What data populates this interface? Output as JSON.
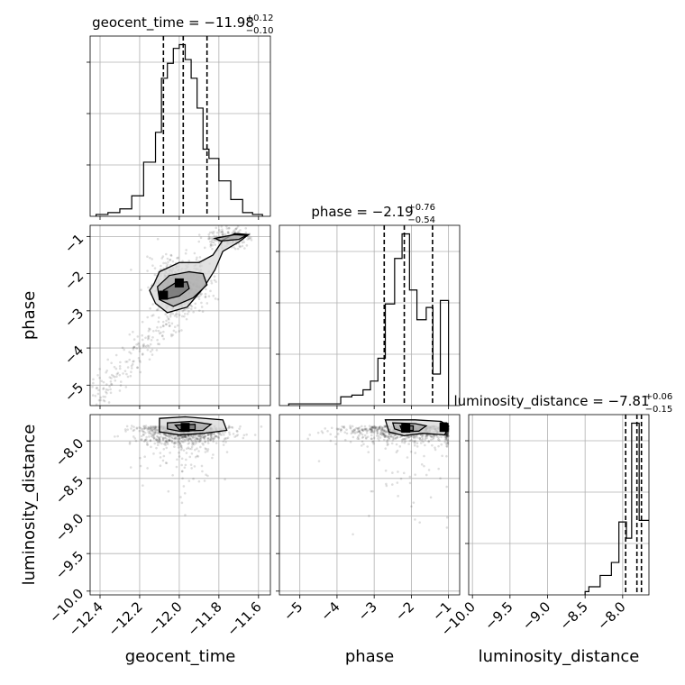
{
  "chart_data": {
    "type": "corner",
    "parameters": [
      "geocent_time",
      "phase",
      "luminosity_distance"
    ],
    "titles": [
      {
        "param": "geocent_time",
        "main": "geocent_time = −11.98",
        "sup": "+0.12",
        "sub": "−0.10"
      },
      {
        "param": "phase",
        "main": "phase = −2.19",
        "sup": "+0.76",
        "sub": "−0.54"
      },
      {
        "param": "luminosity_distance",
        "main": "luminosity_distance = −7.81",
        "sup": "+0.06",
        "sub": "−0.15"
      }
    ],
    "ranges": {
      "geocent_time": [
        -12.45,
        -11.54
      ],
      "phase": [
        -5.55,
        -0.7
      ],
      "luminosity_distance": [
        -10.05,
        -7.65
      ]
    },
    "tick_labels": {
      "geocent_time": [
        "−12.4",
        "−12.2",
        "−12.0",
        "−11.8",
        "−11.6"
      ],
      "phase": [
        "−5",
        "−4",
        "−3",
        "−2",
        "−1"
      ],
      "luminosity_distance": [
        "−10.0",
        "−9.5",
        "−9.0",
        "−8.5",
        "−8.0"
      ]
    },
    "tick_values": {
      "geocent_time": [
        -12.4,
        -12.2,
        -12.0,
        -11.8,
        -11.6
      ],
      "phase": [
        -5,
        -4,
        -3,
        -2,
        -1
      ],
      "luminosity_distance": [
        -10.0,
        -9.5,
        -9.0,
        -8.5,
        -8.0
      ]
    },
    "quantiles": {
      "geocent_time": [
        -12.08,
        -11.98,
        -11.86
      ],
      "phase": [
        -2.73,
        -2.19,
        -1.43
      ],
      "luminosity_distance": [
        -7.96,
        -7.81,
        -7.75
      ]
    },
    "histograms": {
      "geocent_time": {
        "edges": [
          -12.42,
          -12.36,
          -12.3,
          -12.24,
          -12.18,
          -12.12,
          -12.09,
          -12.06,
          -12.03,
          -12.0,
          -11.97,
          -11.94,
          -11.91,
          -11.88,
          -11.85,
          -11.8,
          -11.74,
          -11.68,
          -11.63,
          -11.58
        ],
        "counts": [
          0.01,
          0.02,
          0.04,
          0.11,
          0.29,
          0.45,
          0.74,
          0.82,
          0.9,
          0.92,
          0.84,
          0.74,
          0.58,
          0.36,
          0.31,
          0.19,
          0.09,
          0.02,
          0.01
        ]
      },
      "phase": {
        "edges": [
          -5.3,
          -3.9,
          -3.6,
          -3.3,
          -3.1,
          -2.9,
          -2.7,
          -2.45,
          -2.25,
          -2.05,
          -1.85,
          -1.6,
          -1.42,
          -1.22,
          -1.0
        ],
        "counts": [
          0.01,
          0.05,
          0.06,
          0.09,
          0.14,
          0.27,
          0.58,
          0.84,
          0.98,
          0.66,
          0.49,
          0.56,
          0.18,
          0.6
        ]
      },
      "luminosity_distance": {
        "edges": [
          -8.5,
          -8.45,
          -8.3,
          -8.15,
          -8.05,
          -7.95,
          -7.88,
          -7.78,
          -7.74,
          -7.6
        ],
        "counts": [
          0.02,
          0.05,
          0.12,
          0.2,
          0.45,
          0.35,
          1.06,
          0.46,
          0.46
        ]
      }
    },
    "density_2d": [
      {
        "x": "geocent_time",
        "y": "phase",
        "cores": [
          [
            -12.08,
            -2.58
          ],
          [
            -12.0,
            -2.25
          ]
        ],
        "contours": [
          [
            [
              -12.13,
              -2.3
            ],
            [
              -12.1,
              -1.95
            ],
            [
              -12.0,
              -1.7
            ],
            [
              -11.9,
              -1.7
            ],
            [
              -11.83,
              -1.5
            ],
            [
              -11.78,
              -1.1
            ],
            [
              -11.72,
              -0.92
            ],
            [
              -11.65,
              -0.95
            ],
            [
              -11.7,
              -1.15
            ],
            [
              -11.78,
              -1.4
            ],
            [
              -11.82,
              -1.9
            ],
            [
              -11.88,
              -2.4
            ],
            [
              -11.96,
              -2.9
            ],
            [
              -12.06,
              -3.05
            ],
            [
              -12.12,
              -2.8
            ],
            [
              -12.15,
              -2.45
            ]
          ],
          [
            [
              -12.11,
              -2.35
            ],
            [
              -12.05,
              -2.05
            ],
            [
              -11.95,
              -1.95
            ],
            [
              -11.88,
              -2.0
            ],
            [
              -11.86,
              -2.3
            ],
            [
              -11.93,
              -2.65
            ],
            [
              -12.03,
              -2.88
            ],
            [
              -12.1,
              -2.7
            ]
          ],
          [
            [
              -12.08,
              -2.45
            ],
            [
              -12.02,
              -2.25
            ],
            [
              -11.96,
              -2.22
            ],
            [
              -11.95,
              -2.4
            ],
            [
              -12.0,
              -2.6
            ],
            [
              -12.06,
              -2.68
            ]
          ],
          [
            [
              -11.82,
              -1.05
            ],
            [
              -11.72,
              -0.95
            ],
            [
              -11.66,
              -0.97
            ],
            [
              -11.7,
              -1.08
            ],
            [
              -11.79,
              -1.12
            ]
          ]
        ]
      },
      {
        "x": "geocent_time",
        "y": "luminosity_distance",
        "cores": [
          [
            -11.97,
            -7.82
          ]
        ],
        "contours": [
          [
            [
              -12.1,
              -7.7
            ],
            [
              -11.97,
              -7.68
            ],
            [
              -11.78,
              -7.72
            ],
            [
              -11.76,
              -7.86
            ],
            [
              -11.88,
              -7.9
            ],
            [
              -12.0,
              -7.92
            ],
            [
              -12.1,
              -7.88
            ]
          ],
          [
            [
              -12.06,
              -7.76
            ],
            [
              -11.94,
              -7.74
            ],
            [
              -11.84,
              -7.78
            ],
            [
              -11.88,
              -7.86
            ],
            [
              -12.0,
              -7.87
            ],
            [
              -12.06,
              -7.84
            ]
          ],
          [
            [
              -12.02,
              -7.79
            ],
            [
              -11.92,
              -7.78
            ],
            [
              -11.92,
              -7.85
            ],
            [
              -12.0,
              -7.85
            ]
          ]
        ]
      },
      {
        "x": "phase",
        "y": "luminosity_distance",
        "cores": [
          [
            -2.15,
            -7.83
          ],
          [
            -1.12,
            -7.82
          ]
        ],
        "contours": [
          [
            [
              -2.7,
              -7.72
            ],
            [
              -1.9,
              -7.72
            ],
            [
              -1.2,
              -7.74
            ],
            [
              -1.0,
              -7.8
            ],
            [
              -1.1,
              -7.92
            ],
            [
              -1.7,
              -7.9
            ],
            [
              -2.2,
              -7.93
            ],
            [
              -2.6,
              -7.88
            ]
          ],
          [
            [
              -2.5,
              -7.76
            ],
            [
              -1.9,
              -7.77
            ],
            [
              -1.6,
              -7.8
            ],
            [
              -1.8,
              -7.87
            ],
            [
              -2.2,
              -7.88
            ],
            [
              -2.45,
              -7.84
            ]
          ],
          [
            [
              -2.3,
              -7.8
            ],
            [
              -1.95,
              -7.8
            ],
            [
              -1.95,
              -7.86
            ],
            [
              -2.25,
              -7.86
            ]
          ],
          [
            [
              -1.22,
              -7.76
            ],
            [
              -1.05,
              -7.76
            ],
            [
              -1.02,
              -7.86
            ],
            [
              -1.2,
              -7.86
            ]
          ]
        ]
      }
    ]
  }
}
